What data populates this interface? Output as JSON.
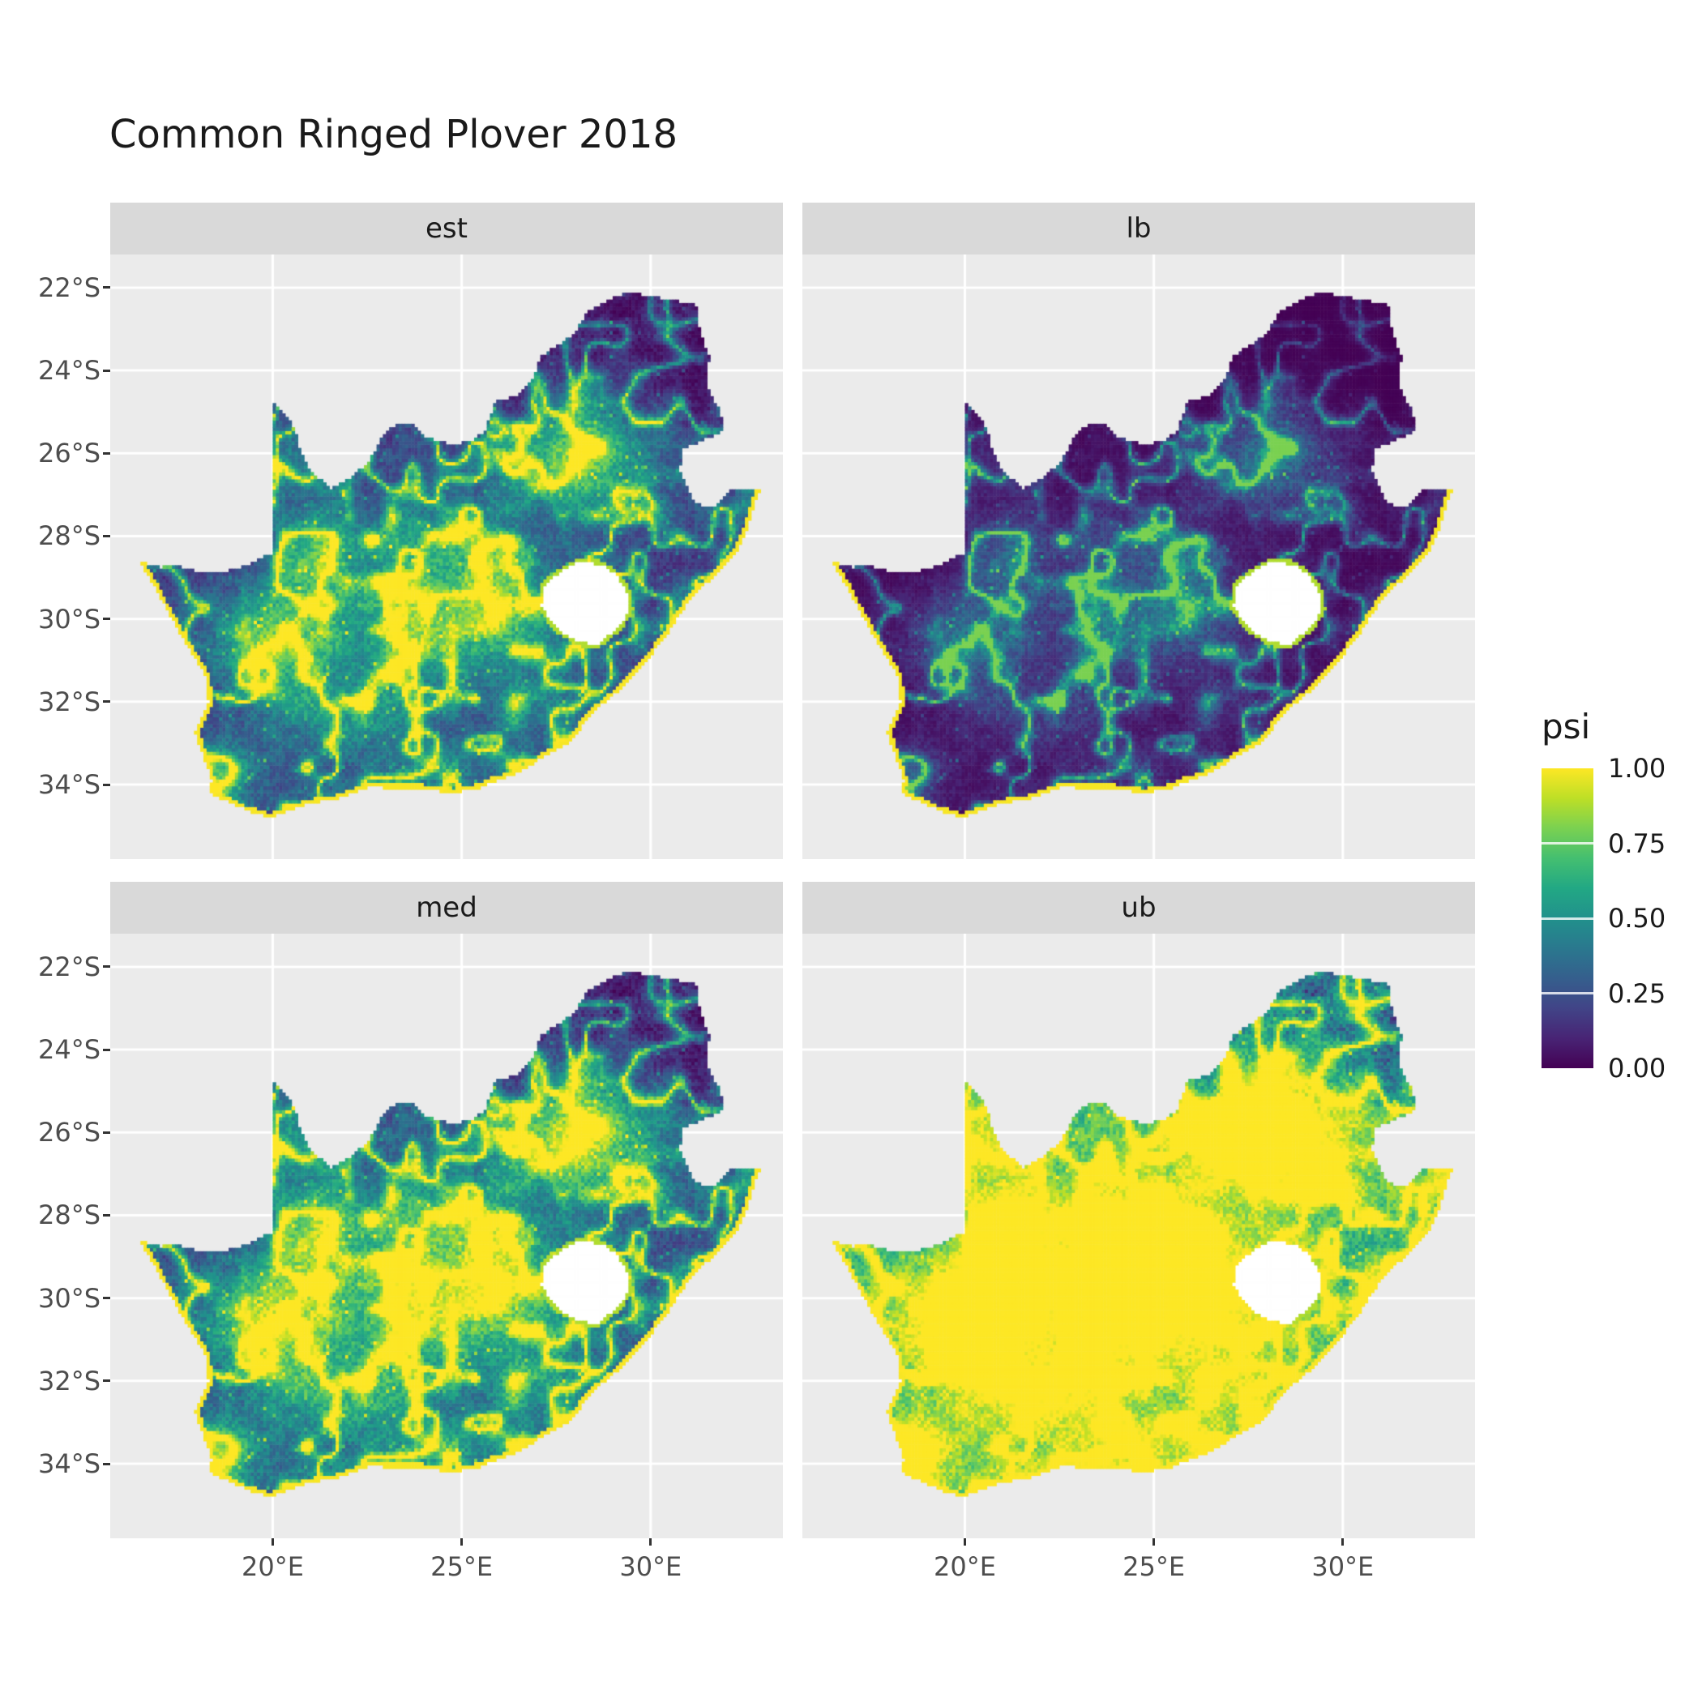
{
  "figure": {
    "title": "Common Ringed Plover 2018",
    "background": "#FFFFFF"
  },
  "colors": {
    "panel_background": "#EBEBEB",
    "strip_background": "#D9D9D9",
    "gridline": "#FFFFFF",
    "axis_text": "#4D4D4D",
    "tick_mark": "#333333",
    "title_text": "#1A1A1A",
    "na_fill": "#FFFFFF",
    "viridis_low": "#440154",
    "viridis_high": "#FDE725"
  },
  "chart_data": {
    "type": "heatmap",
    "subtype": "faceted-raster-map",
    "title": "Common Ringed Plover 2018",
    "region": "South Africa",
    "variable": "psi",
    "facets": [
      {
        "id": "est",
        "label": "est"
      },
      {
        "id": "lb",
        "label": "lb"
      },
      {
        "id": "med",
        "label": "med"
      },
      {
        "id": "ub",
        "label": "ub"
      }
    ],
    "facet_summary": {
      "est": "estimated occupancy, mostly low with bright linear features and hotspots",
      "lb": "lower bound, darkest panel, mostly near 0",
      "med": "median, slightly brighter than est",
      "ub": "upper bound, brightest panel, large high-psi areas in south and west"
    },
    "x_ticks": [
      {
        "value": 20,
        "label": "20°E"
      },
      {
        "value": 25,
        "label": "25°E"
      },
      {
        "value": 30,
        "label": "30°E"
      }
    ],
    "y_ticks": [
      {
        "value": -22,
        "label": "22°S"
      },
      {
        "value": -24,
        "label": "24°S"
      },
      {
        "value": -26,
        "label": "26°S"
      },
      {
        "value": -28,
        "label": "28°S"
      },
      {
        "value": -30,
        "label": "30°S"
      },
      {
        "value": -32,
        "label": "32°S"
      },
      {
        "value": -34,
        "label": "34°S"
      }
    ],
    "extent": {
      "lon": [
        15.7,
        33.5
      ],
      "lat": [
        -35.8,
        -21.2
      ]
    },
    "legend": {
      "title": "psi",
      "breaks": [
        0,
        0.25,
        0.5,
        0.75,
        1
      ],
      "labels": [
        "0.00",
        "0.25",
        "0.50",
        "0.75",
        "1.00"
      ],
      "position": "right"
    },
    "colormap": {
      "name": "viridis",
      "stops": [
        [
          0.0,
          "#440154"
        ],
        [
          0.1,
          "#482475"
        ],
        [
          0.2,
          "#414487"
        ],
        [
          0.3,
          "#355F8D"
        ],
        [
          0.4,
          "#2A788E"
        ],
        [
          0.5,
          "#21918C"
        ],
        [
          0.6,
          "#22A884"
        ],
        [
          0.7,
          "#44BF70"
        ],
        [
          0.8,
          "#7AD151"
        ],
        [
          0.9,
          "#BDDF26"
        ],
        [
          1.0,
          "#FDE725"
        ]
      ]
    },
    "outline": [
      [
        16.45,
        -28.6
      ],
      [
        17.05,
        -28.75
      ],
      [
        17.45,
        -28.7
      ],
      [
        18.1,
        -28.87
      ],
      [
        18.75,
        -28.84
      ],
      [
        19.3,
        -28.72
      ],
      [
        19.7,
        -28.5
      ],
      [
        19.99,
        -28.45
      ],
      [
        19.99,
        -24.77
      ],
      [
        20.35,
        -25.05
      ],
      [
        20.6,
        -25.45
      ],
      [
        20.7,
        -25.9
      ],
      [
        20.95,
        -26.35
      ],
      [
        21.5,
        -26.85
      ],
      [
        21.95,
        -26.65
      ],
      [
        22.55,
        -26.2
      ],
      [
        22.9,
        -25.6
      ],
      [
        23.25,
        -25.3
      ],
      [
        23.7,
        -25.3
      ],
      [
        24.1,
        -25.63
      ],
      [
        24.75,
        -25.8
      ],
      [
        25.35,
        -25.65
      ],
      [
        25.6,
        -25.47
      ],
      [
        25.9,
        -24.75
      ],
      [
        26.4,
        -24.63
      ],
      [
        26.85,
        -24.25
      ],
      [
        27.1,
        -23.65
      ],
      [
        27.95,
        -23.15
      ],
      [
        28.3,
        -22.6
      ],
      [
        29.05,
        -22.2
      ],
      [
        29.45,
        -22.13
      ],
      [
        30.0,
        -22.2
      ],
      [
        30.6,
        -22.3
      ],
      [
        31.2,
        -22.4
      ],
      [
        31.3,
        -23.0
      ],
      [
        31.55,
        -23.7
      ],
      [
        31.45,
        -24.35
      ],
      [
        31.8,
        -24.9
      ],
      [
        31.95,
        -25.45
      ],
      [
        31.3,
        -25.72
      ],
      [
        30.82,
        -25.9
      ],
      [
        30.78,
        -26.4
      ],
      [
        30.95,
        -26.8
      ],
      [
        31.15,
        -27.2
      ],
      [
        31.6,
        -27.32
      ],
      [
        31.97,
        -27.05
      ],
      [
        32.12,
        -26.86
      ],
      [
        32.89,
        -26.86
      ],
      [
        32.55,
        -27.8
      ],
      [
        32.25,
        -28.4
      ],
      [
        31.7,
        -28.95
      ],
      [
        31.05,
        -29.5
      ],
      [
        30.4,
        -30.4
      ],
      [
        29.9,
        -31.0
      ],
      [
        29.2,
        -31.7
      ],
      [
        28.4,
        -32.3
      ],
      [
        27.9,
        -32.95
      ],
      [
        27.05,
        -33.4
      ],
      [
        26.4,
        -33.75
      ],
      [
        25.65,
        -33.98
      ],
      [
        25.6,
        -34.05
      ],
      [
        24.8,
        -34.2
      ],
      [
        23.95,
        -34.1
      ],
      [
        23.3,
        -34.1
      ],
      [
        22.55,
        -34.05
      ],
      [
        21.7,
        -34.35
      ],
      [
        20.95,
        -34.45
      ],
      [
        20.2,
        -34.7
      ],
      [
        19.95,
        -34.8
      ],
      [
        19.3,
        -34.62
      ],
      [
        18.85,
        -34.4
      ],
      [
        18.45,
        -34.3
      ],
      [
        18.32,
        -34.1
      ],
      [
        18.4,
        -33.9
      ],
      [
        18.15,
        -33.3
      ],
      [
        17.95,
        -32.75
      ],
      [
        18.3,
        -32.05
      ],
      [
        18.25,
        -31.4
      ],
      [
        17.7,
        -30.6
      ],
      [
        17.15,
        -29.7
      ],
      [
        16.8,
        -29.1
      ]
    ],
    "lesotho_hole": [
      [
        27.55,
        -28.9
      ],
      [
        28.1,
        -28.62
      ],
      [
        28.7,
        -28.68
      ],
      [
        29.1,
        -28.95
      ],
      [
        29.35,
        -29.3
      ],
      [
        29.45,
        -29.75
      ],
      [
        29.15,
        -30.2
      ],
      [
        28.6,
        -30.6
      ],
      [
        28.1,
        -30.55
      ],
      [
        27.55,
        -30.25
      ],
      [
        27.1,
        -29.7
      ],
      [
        27.2,
        -29.2
      ]
    ],
    "coast_start_index": 47,
    "render_params": {
      "cell_deg": 0.0833,
      "grid_origin": [
        16.0,
        -35.2
      ],
      "grid_n": [
        206,
        158
      ],
      "noise": {
        "fbm_scales": [
          1.9,
          0.8,
          0.33
        ],
        "fbm_weights": [
          0.5,
          0.3,
          0.2
        ],
        "ridge_scales": [
          1.3,
          0.55
        ],
        "ridge_power": 8
      },
      "base": {
        "offset": 0.05,
        "fbm_weight": 0.4,
        "ridge_weight": 0.55,
        "jitter": 0.14
      },
      "broad": {
        "center": [
          23.2,
          -30.6
        ],
        "sigma": 4.2,
        "weight": 0.22
      },
      "hotspots": [
        [
          28.05,
          -26.15,
          0.75,
          0.5
        ],
        [
          25.0,
          -28.6,
          1.1,
          0.3
        ],
        [
          21.0,
          -28.4,
          0.7,
          0.2
        ],
        [
          19.9,
          -30.5,
          0.9,
          0.28
        ],
        [
          18.55,
          -33.85,
          0.6,
          0.3
        ],
        [
          23.0,
          -30.8,
          1.3,
          0.2
        ],
        [
          26.5,
          -29.3,
          1.0,
          0.22
        ],
        [
          30.9,
          -29.85,
          0.45,
          0.25
        ],
        [
          29.3,
          -26.0,
          0.8,
          0.22
        ]
      ],
      "transforms": {
        "est": {
          "gain": 1.2,
          "gamma": 1.5,
          "offset": 0.0
        },
        "lb": {
          "gain": 0.8,
          "gamma": 2.7,
          "offset": 0.0
        },
        "med": {
          "gain": 1.35,
          "gamma": 1.3,
          "offset": 0.0
        },
        "ub": {
          "gain": 1.5,
          "gamma": 0.75,
          "offset": 0.08
        }
      },
      "coast_rim": {
        "dist": 0.11,
        "value": 0.99
      },
      "hole_rim": {
        "dist": 0.1,
        "value": 0.88
      }
    }
  }
}
